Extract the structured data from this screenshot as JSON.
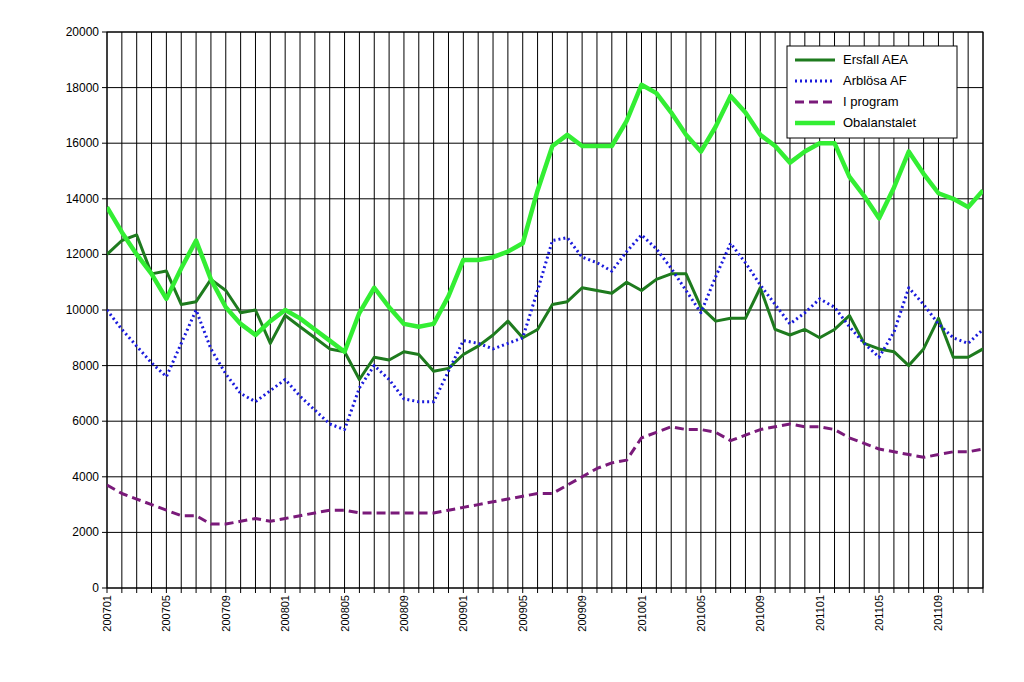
{
  "chart_data": {
    "type": "line",
    "categories": [
      "200701",
      null,
      null,
      null,
      "200705",
      null,
      null,
      null,
      "200709",
      null,
      null,
      null,
      "200801",
      null,
      null,
      null,
      "200805",
      null,
      null,
      null,
      "200809",
      null,
      null,
      null,
      "200901",
      null,
      null,
      null,
      "200905",
      null,
      null,
      null,
      "200909",
      null,
      null,
      null,
      "201001",
      null,
      null,
      null,
      "201005",
      null,
      null,
      null,
      "201009",
      null,
      null,
      null,
      "201101",
      null,
      null,
      null,
      "201105",
      null,
      null,
      null,
      "201109",
      null,
      null,
      null
    ],
    "series": [
      {
        "name": "Ersfall AEA",
        "color": "#1e7b1e",
        "line_style": "solid",
        "values": [
          12000,
          12500,
          12700,
          11300,
          11400,
          10200,
          10300,
          11100,
          10700,
          9900,
          10000,
          8800,
          9800,
          9400,
          9000,
          8600,
          8500,
          7500,
          8300,
          8200,
          8500,
          8400,
          7800,
          7900,
          8400,
          8700,
          9100,
          9600,
          9000,
          9300,
          10200,
          10300,
          10800,
          10700,
          10600,
          11000,
          10700,
          11100,
          11300,
          11300,
          10100,
          9600,
          9700,
          9700,
          10800,
          9300,
          9100,
          9300,
          9000,
          9300,
          9800,
          8800,
          8600,
          8500,
          8000,
          8600,
          9700,
          8300,
          8300,
          8600
        ]
      },
      {
        "name": "Arblösa AF",
        "color": "#1a1adc",
        "line_style": "dotted",
        "values": [
          10000,
          9300,
          8700,
          8100,
          7600,
          8800,
          10000,
          8600,
          7700,
          7000,
          6700,
          7100,
          7500,
          6900,
          6400,
          5900,
          5700,
          7200,
          8000,
          7500,
          6800,
          6700,
          6700,
          7800,
          8900,
          8800,
          8600,
          8800,
          9000,
          10700,
          12500,
          12600,
          11900,
          11700,
          11400,
          12100,
          12700,
          12200,
          11500,
          10700,
          9900,
          11200,
          12400,
          11700,
          10900,
          10200,
          9500,
          9900,
          10400,
          10100,
          9400,
          8800,
          8300,
          9200,
          10800,
          10200,
          9500,
          9000,
          8800,
          9300
        ]
      },
      {
        "name": "I program",
        "color": "#7a1a7a",
        "line_style": "dashed",
        "values": [
          3700,
          3400,
          3200,
          3000,
          2800,
          2600,
          2600,
          2300,
          2300,
          2400,
          2500,
          2400,
          2500,
          2600,
          2700,
          2800,
          2800,
          2700,
          2700,
          2700,
          2700,
          2700,
          2700,
          2800,
          2900,
          3000,
          3100,
          3200,
          3300,
          3400,
          3400,
          3700,
          4000,
          4300,
          4500,
          4600,
          5400,
          5600,
          5800,
          5700,
          5700,
          5600,
          5300,
          5500,
          5700,
          5800,
          5900,
          5800,
          5800,
          5700,
          5400,
          5200,
          5000,
          4900,
          4800,
          4700,
          4800,
          4900,
          4900,
          5000
        ]
      },
      {
        "name": "Obalanstalet",
        "color": "#33ee33",
        "line_style": "solid",
        "values": [
          13700,
          12800,
          12000,
          11300,
          10400,
          11500,
          12500,
          11100,
          10100,
          9500,
          9100,
          9600,
          10000,
          9700,
          9300,
          8900,
          8500,
          9900,
          10800,
          10100,
          9500,
          9400,
          9500,
          10500,
          11800,
          11800,
          11900,
          12100,
          12400,
          14300,
          15900,
          16300,
          15900,
          15900,
          15900,
          16800,
          18100,
          17800,
          17100,
          16300,
          15700,
          16600,
          17700,
          17100,
          16300,
          15900,
          15300,
          15700,
          16000,
          16000,
          14800,
          14100,
          13300,
          14400,
          15700,
          14900,
          14200,
          14000,
          13700,
          14300
        ]
      }
    ],
    "ylim": [
      0,
      20000
    ],
    "yticks": [
      0,
      2000,
      4000,
      6000,
      8000,
      10000,
      12000,
      14000,
      16000,
      18000,
      20000
    ],
    "grid": true,
    "legend": "upper right"
  }
}
